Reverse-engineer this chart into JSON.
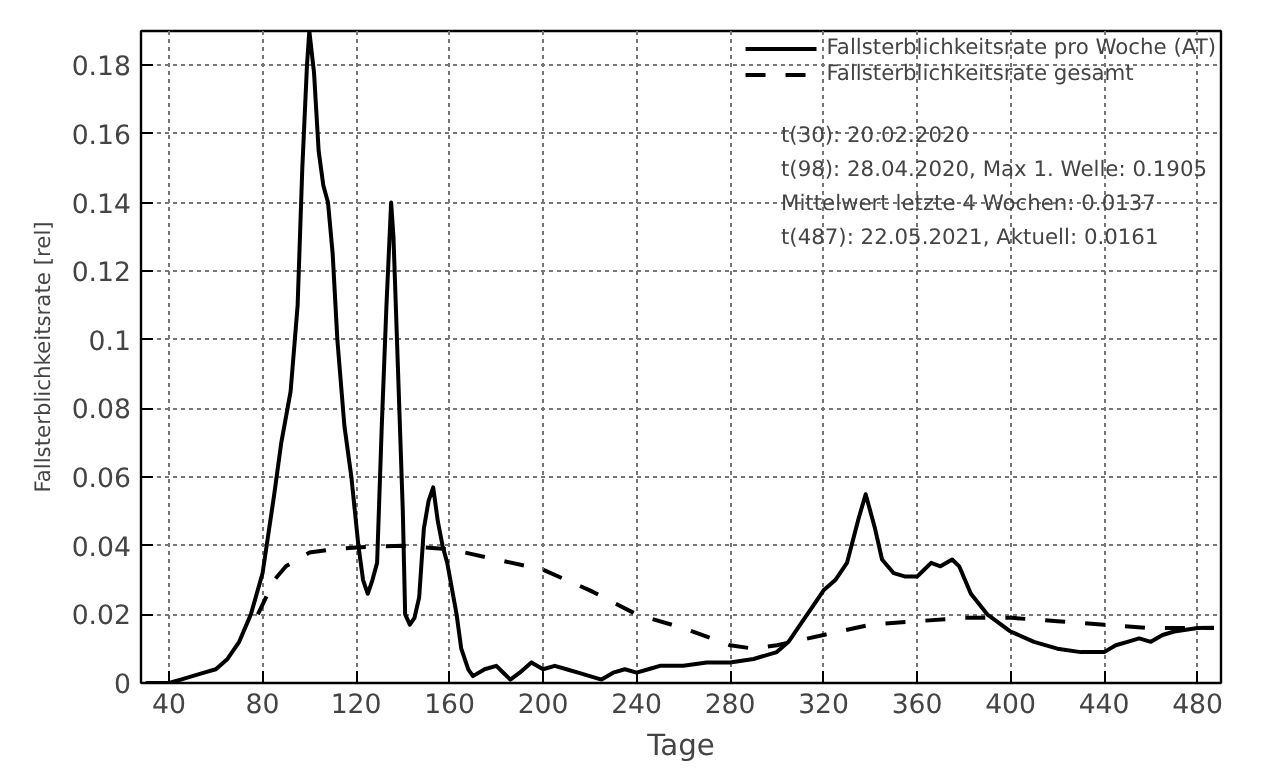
{
  "chart_data": {
    "type": "line",
    "xlabel": "Tage",
    "ylabel": "Fallsterblichkeitsrate [rel]",
    "xlim": [
      28,
      490
    ],
    "ylim": [
      0,
      0.19
    ],
    "xticks": [
      40,
      80,
      120,
      160,
      200,
      240,
      280,
      320,
      360,
      400,
      440,
      480
    ],
    "yticks": [
      0,
      0.02,
      0.04,
      0.06,
      0.08,
      0.1,
      0.12,
      0.14,
      0.16,
      0.18
    ],
    "grid": true,
    "legend": "top right",
    "annotations": [
      "t(30): 20.02.2020",
      "t(98): 28.04.2020, Max 1. Welle: 0.1905",
      "Mittelwert letzte 4 Wochen: 0.0137",
      "t(487): 22.05.2021, Aktuell: 0.0161"
    ],
    "series": [
      {
        "name": "Fallsterblichkeitsrate pro Woche (AT)",
        "color": "#000000",
        "line_style": "solid",
        "x": [
          30,
          40,
          45,
          50,
          55,
          60,
          65,
          70,
          75,
          80,
          85,
          88,
          92,
          95,
          97,
          99,
          100,
          102,
          104,
          106,
          108,
          110,
          112,
          115,
          118,
          121,
          123,
          125,
          127,
          129,
          131,
          133,
          135,
          136,
          138,
          140,
          141,
          143,
          145,
          147,
          149,
          151,
          153,
          155,
          157,
          159,
          163,
          165,
          168,
          170,
          175,
          180,
          183,
          186,
          190,
          195,
          200,
          205,
          210,
          215,
          220,
          225,
          230,
          235,
          240,
          245,
          250,
          260,
          270,
          280,
          290,
          300,
          305,
          310,
          315,
          320,
          325,
          330,
          335,
          338,
          342,
          345,
          350,
          355,
          360,
          363,
          366,
          370,
          375,
          378,
          383,
          390,
          400,
          410,
          420,
          430,
          440,
          445,
          450,
          455,
          460,
          465,
          470,
          480,
          487
        ],
        "values": [
          0,
          0,
          0.001,
          0.002,
          0.003,
          0.004,
          0.007,
          0.012,
          0.02,
          0.032,
          0.055,
          0.07,
          0.085,
          0.11,
          0.15,
          0.18,
          0.19,
          0.178,
          0.155,
          0.145,
          0.14,
          0.125,
          0.1,
          0.075,
          0.06,
          0.04,
          0.03,
          0.026,
          0.03,
          0.035,
          0.075,
          0.11,
          0.14,
          0.13,
          0.09,
          0.05,
          0.02,
          0.017,
          0.019,
          0.025,
          0.045,
          0.053,
          0.057,
          0.047,
          0.04,
          0.035,
          0.02,
          0.01,
          0.004,
          0.002,
          0.004,
          0.005,
          0.003,
          0.001,
          0.003,
          0.006,
          0.004,
          0.005,
          0.004,
          0.003,
          0.002,
          0.001,
          0.003,
          0.004,
          0.003,
          0.004,
          0.005,
          0.005,
          0.006,
          0.006,
          0.007,
          0.009,
          0.012,
          0.017,
          0.022,
          0.027,
          0.03,
          0.035,
          0.048,
          0.055,
          0.045,
          0.036,
          0.032,
          0.031,
          0.031,
          0.033,
          0.035,
          0.034,
          0.036,
          0.034,
          0.026,
          0.02,
          0.015,
          0.012,
          0.01,
          0.009,
          0.009,
          0.011,
          0.012,
          0.013,
          0.012,
          0.014,
          0.015,
          0.016,
          0.0161
        ]
      },
      {
        "name": "Fallsterblichkeitsrate gesamt",
        "color": "#000000",
        "line_style": "dashed",
        "x": [
          78,
          85,
          90,
          95,
          100,
          110,
          120,
          140,
          160,
          180,
          200,
          220,
          240,
          260,
          280,
          290,
          300,
          320,
          340,
          360,
          380,
          400,
          420,
          440,
          460,
          487
        ],
        "values": [
          0.02,
          0.03,
          0.034,
          0.036,
          0.038,
          0.039,
          0.0395,
          0.04,
          0.039,
          0.036,
          0.033,
          0.027,
          0.02,
          0.016,
          0.011,
          0.01,
          0.011,
          0.014,
          0.017,
          0.018,
          0.019,
          0.019,
          0.018,
          0.017,
          0.016,
          0.016
        ]
      }
    ]
  }
}
